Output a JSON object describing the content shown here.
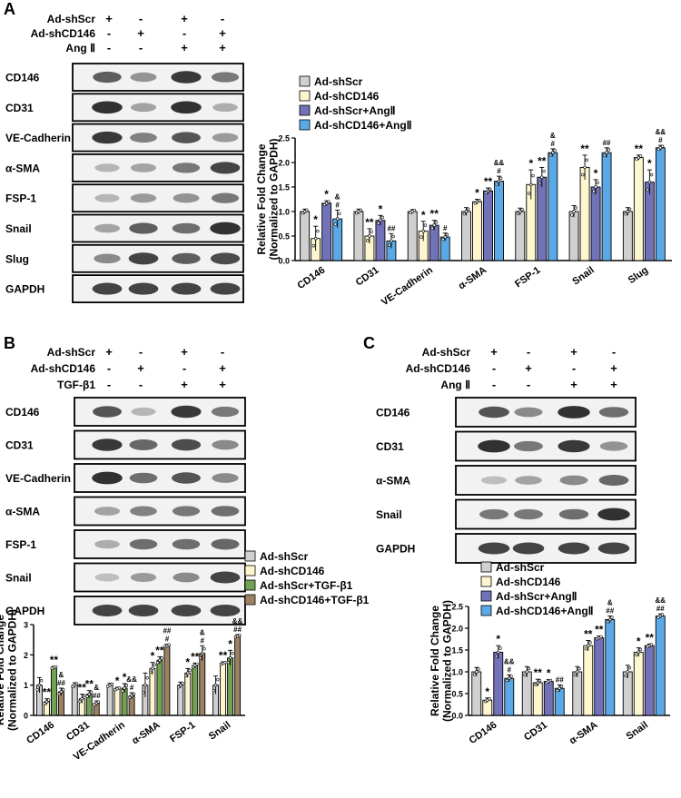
{
  "colors": {
    "ctrl": "#d0d0d0",
    "shcd": "#fdf6cf",
    "ang": "#7272b8",
    "shcdang": "#5aa9e6",
    "tgf": "#73a352",
    "shcdtgf": "#9c8263",
    "band": "#222222"
  },
  "panels": [
    {
      "letter": "A",
      "treat_rows": [
        {
          "label": "Ad-shScr",
          "signs": [
            "+",
            "-",
            "+",
            "-"
          ]
        },
        {
          "label": "Ad-shCD146",
          "signs": [
            "-",
            "+",
            "-",
            "+"
          ]
        },
        {
          "label": "Ang Ⅱ",
          "signs": [
            "-",
            "-",
            "+",
            "+"
          ]
        }
      ],
      "blots": [
        {
          "label": "CD146",
          "bands": [
            0.7,
            0.4,
            0.9,
            0.55
          ]
        },
        {
          "label": "CD31",
          "bands": [
            0.95,
            0.3,
            0.95,
            0.25
          ]
        },
        {
          "label": "VE-Cadherin",
          "bands": [
            0.9,
            0.5,
            0.75,
            0.35
          ]
        },
        {
          "label": "α-SMA",
          "bands": [
            0.2,
            0.3,
            0.55,
            0.85
          ]
        },
        {
          "label": "FSP-1",
          "bands": [
            0.2,
            0.35,
            0.4,
            0.55
          ]
        },
        {
          "label": "Snail",
          "bands": [
            0.3,
            0.7,
            0.6,
            0.95
          ]
        },
        {
          "label": "Slug",
          "bands": [
            0.45,
            0.85,
            0.7,
            0.8
          ]
        },
        {
          "label": "GAPDH",
          "bands": [
            0.85,
            0.85,
            0.85,
            0.85
          ]
        }
      ],
      "legend": [
        "Ad-shScr",
        "Ad-shCD146",
        "Ad-shScr+AngⅡ",
        "Ad-shCD146+AngⅡ"
      ]
    },
    {
      "letter": "B",
      "treat_rows": [
        {
          "label": "Ad-shScr",
          "signs": [
            "+",
            "-",
            "+",
            "-"
          ]
        },
        {
          "label": "Ad-shCD146",
          "signs": [
            "-",
            "+",
            "-",
            "+"
          ]
        },
        {
          "label": "TGF-β1",
          "signs": [
            "-",
            "-",
            "+",
            "+"
          ]
        }
      ],
      "blots": [
        {
          "label": "CD146",
          "bands": [
            0.75,
            0.2,
            0.9,
            0.55
          ]
        },
        {
          "label": "CD31",
          "bands": [
            0.9,
            0.65,
            0.8,
            0.45
          ]
        },
        {
          "label": "VE-Cadherin",
          "bands": [
            0.95,
            0.6,
            0.75,
            0.45
          ]
        },
        {
          "label": "α-SMA",
          "bands": [
            0.3,
            0.5,
            0.55,
            0.6
          ]
        },
        {
          "label": "FSP-1",
          "bands": [
            0.25,
            0.6,
            0.6,
            0.65
          ]
        },
        {
          "label": "Snail",
          "bands": [
            0.15,
            0.35,
            0.45,
            0.85
          ]
        },
        {
          "label": "GAPDH",
          "bands": [
            0.85,
            0.85,
            0.85,
            0.85
          ]
        }
      ],
      "legend": [
        "Ad-shScr",
        "Ad-shCD146",
        "Ad-shScr+TGF-β1",
        "Ad-shCD146+TGF-β1"
      ]
    },
    {
      "letter": "C",
      "treat_rows": [
        {
          "label": "Ad-shScr",
          "signs": [
            "+",
            "-",
            "+",
            "-"
          ]
        },
        {
          "label": "Ad-shCD146",
          "signs": [
            "-",
            "+",
            "-",
            "+"
          ]
        },
        {
          "label": "Ang Ⅱ",
          "signs": [
            "-",
            "-",
            "+",
            "+"
          ]
        }
      ],
      "blots": [
        {
          "label": "CD146",
          "bands": [
            0.75,
            0.45,
            0.95,
            0.6
          ]
        },
        {
          "label": "CD31",
          "bands": [
            0.95,
            0.55,
            0.9,
            0.4
          ]
        },
        {
          "label": "α-SMA",
          "bands": [
            0.15,
            0.3,
            0.45,
            0.65
          ]
        },
        {
          "label": "Snail",
          "bands": [
            0.55,
            0.55,
            0.6,
            0.95
          ]
        },
        {
          "label": "GAPDH",
          "bands": [
            0.85,
            0.85,
            0.85,
            0.85
          ]
        }
      ],
      "legend": [
        "Ad-shScr",
        "Ad-shCD146",
        "Ad-shScr+AngⅡ",
        "Ad-shCD146+AngⅡ"
      ]
    }
  ],
  "chart_data": [
    {
      "type": "bar",
      "panel": "A",
      "ylabel": "Relative Fold Change (Normalized to GAPDH)",
      "ylim": [
        0,
        2.5
      ],
      "yticks": [
        "0.0",
        "0.5",
        "1.0",
        "1.5",
        "2.0",
        "2.5"
      ],
      "categories": [
        "CD146",
        "CD31",
        "VE-Cadherin",
        "α-SMA",
        "FSP-1",
        "Snail",
        "Slug"
      ],
      "series": [
        {
          "name": "Ad-shScr",
          "values": [
            1.0,
            1.0,
            1.0,
            1.0,
            1.0,
            1.0,
            1.0
          ],
          "errors": [
            0.05,
            0.05,
            0.04,
            0.08,
            0.07,
            0.12,
            0.08
          ]
        },
        {
          "name": "Ad-shCD146",
          "values": [
            0.45,
            0.5,
            0.6,
            1.2,
            1.55,
            1.9,
            2.1
          ],
          "errors": [
            0.25,
            0.15,
            0.2,
            0.05,
            0.3,
            0.25,
            0.05
          ]
        },
        {
          "name": "Ad-shScr+AngⅡ",
          "values": [
            1.17,
            0.82,
            0.72,
            1.42,
            1.7,
            1.5,
            1.6
          ],
          "errors": [
            0.05,
            0.1,
            0.1,
            0.06,
            0.2,
            0.15,
            0.25
          ]
        },
        {
          "name": "Ad-shCD146+AngⅡ",
          "values": [
            0.85,
            0.4,
            0.48,
            1.62,
            2.2,
            2.2,
            2.3
          ],
          "errors": [
            0.18,
            0.15,
            0.08,
            0.1,
            0.08,
            0.1,
            0.05
          ]
        }
      ],
      "sig": [
        [
          "",
          "",
          "",
          "",
          "",
          "",
          ""
        ],
        [
          "*",
          "**",
          "*",
          "*",
          "*",
          "**",
          "**"
        ],
        [
          "*",
          "*",
          "**",
          "**",
          "**",
          "*",
          "*"
        ],
        [
          "&\n#",
          "##",
          "#",
          "&&\n#",
          "&\n#",
          "##",
          "&&\n#"
        ]
      ]
    },
    {
      "type": "bar",
      "panel": "B",
      "ylabel": "Relative Fold Change (Normalized to GAPDH)",
      "ylim": [
        0,
        3
      ],
      "yticks": [
        "0",
        "1",
        "2",
        "3"
      ],
      "categories": [
        "CD146",
        "CD31",
        "VE-Cadherin",
        "α-SMA",
        "FSP-1",
        "Snail"
      ],
      "series": [
        {
          "name": "Ad-shScr",
          "values": [
            1.0,
            1.0,
            1.0,
            1.0,
            1.0,
            1.0
          ],
          "errors": [
            0.25,
            0.08,
            0.06,
            0.4,
            0.1,
            0.3
          ]
        },
        {
          "name": "Ad-shCD146",
          "values": [
            0.45,
            0.55,
            0.88,
            1.55,
            1.4,
            1.72
          ],
          "errors": [
            0.1,
            0.15,
            0.05,
            0.2,
            0.15,
            0.05
          ]
        },
        {
          "name": "Ad-shScr+TGF-β1",
          "values": [
            1.58,
            0.7,
            0.9,
            1.82,
            1.65,
            1.9
          ],
          "errors": [
            0.04,
            0.12,
            0.15,
            0.12,
            0.08,
            0.25
          ]
        },
        {
          "name": "Ad-shCD146+TGF-β1",
          "values": [
            0.78,
            0.4,
            0.65,
            2.3,
            2.05,
            2.62
          ],
          "errors": [
            0.12,
            0.08,
            0.1,
            0.05,
            0.25,
            0.05
          ]
        }
      ],
      "sig": [
        [
          "",
          "",
          "",
          "",
          "",
          ""
        ],
        [
          "**",
          "**",
          "*",
          "*",
          "*",
          "**"
        ],
        [
          "**",
          "**",
          "*",
          "**",
          "**",
          "*"
        ],
        [
          "&\n##",
          "&\n##",
          "&&\n#",
          "##\n#",
          "&\n#",
          "&&\n##"
        ]
      ]
    },
    {
      "type": "bar",
      "panel": "C",
      "ylabel": "Relative Fold Change (Normalized to GAPDH)",
      "ylim": [
        0,
        2.5
      ],
      "yticks": [
        "0.0",
        "0.5",
        "1.0",
        "1.5",
        "2.0",
        "2.5"
      ],
      "categories": [
        "CD146",
        "CD31",
        "α-SMA",
        "Snail"
      ],
      "series": [
        {
          "name": "Ad-shScr",
          "values": [
            1.0,
            1.0,
            1.0,
            1.0
          ],
          "errors": [
            0.1,
            0.12,
            0.12,
            0.15
          ]
        },
        {
          "name": "Ad-shCD146",
          "values": [
            0.35,
            0.75,
            1.6,
            1.45
          ],
          "errors": [
            0.05,
            0.08,
            0.12,
            0.1
          ]
        },
        {
          "name": "Ad-shScr+AngⅡ",
          "values": [
            1.45,
            0.78,
            1.78,
            1.6
          ],
          "errors": [
            0.15,
            0.04,
            0.04,
            0.04
          ]
        },
        {
          "name": "Ad-shCD146+AngⅡ",
          "values": [
            0.85,
            0.62,
            2.2,
            2.28
          ],
          "errors": [
            0.08,
            0.08,
            0.08,
            0.05
          ]
        }
      ],
      "sig": [
        [
          "",
          "",
          "",
          ""
        ],
        [
          "*",
          "**",
          "**",
          "*"
        ],
        [
          "*",
          "*",
          "**",
          "**"
        ],
        [
          "&&\n#",
          "##",
          "&\n##",
          "&&\n##"
        ]
      ]
    }
  ]
}
